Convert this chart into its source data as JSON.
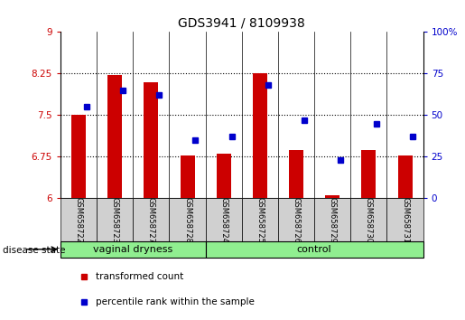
{
  "title": "GDS3941 / 8109938",
  "samples": [
    "GSM658722",
    "GSM658723",
    "GSM658727",
    "GSM658728",
    "GSM658724",
    "GSM658725",
    "GSM658726",
    "GSM658729",
    "GSM658730",
    "GSM658731"
  ],
  "red_values": [
    7.5,
    8.22,
    8.1,
    6.78,
    6.8,
    8.25,
    6.87,
    6.05,
    6.87,
    6.78
  ],
  "blue_values": [
    55,
    65,
    62,
    35,
    37,
    68,
    47,
    23,
    45,
    37
  ],
  "groups": [
    {
      "label": "vaginal dryness",
      "indices": [
        0,
        1,
        2,
        3
      ]
    },
    {
      "label": "control",
      "indices": [
        4,
        5,
        6,
        7,
        8,
        9
      ]
    }
  ],
  "ylim_left": [
    6,
    9
  ],
  "ylim_right": [
    0,
    100
  ],
  "yticks_left": [
    6,
    6.75,
    7.5,
    8.25,
    9
  ],
  "yticks_left_labels": [
    "6",
    "6.75",
    "7.5",
    "8.25",
    "9"
  ],
  "yticks_right": [
    0,
    25,
    50,
    75,
    100
  ],
  "yticks_right_labels": [
    "0",
    "25",
    "50",
    "75",
    "100%"
  ],
  "bar_color": "#cc0000",
  "square_color": "#0000cc",
  "bar_width": 0.4,
  "group_bg": "#90ee90",
  "sample_box_bg": "#d0d0d0",
  "disease_state_label": "disease state",
  "legend_red_label": "transformed count",
  "legend_blue_label": "percentile rank within the sample",
  "axis_label_color_left": "#cc0000",
  "axis_label_color_right": "#0000cc"
}
